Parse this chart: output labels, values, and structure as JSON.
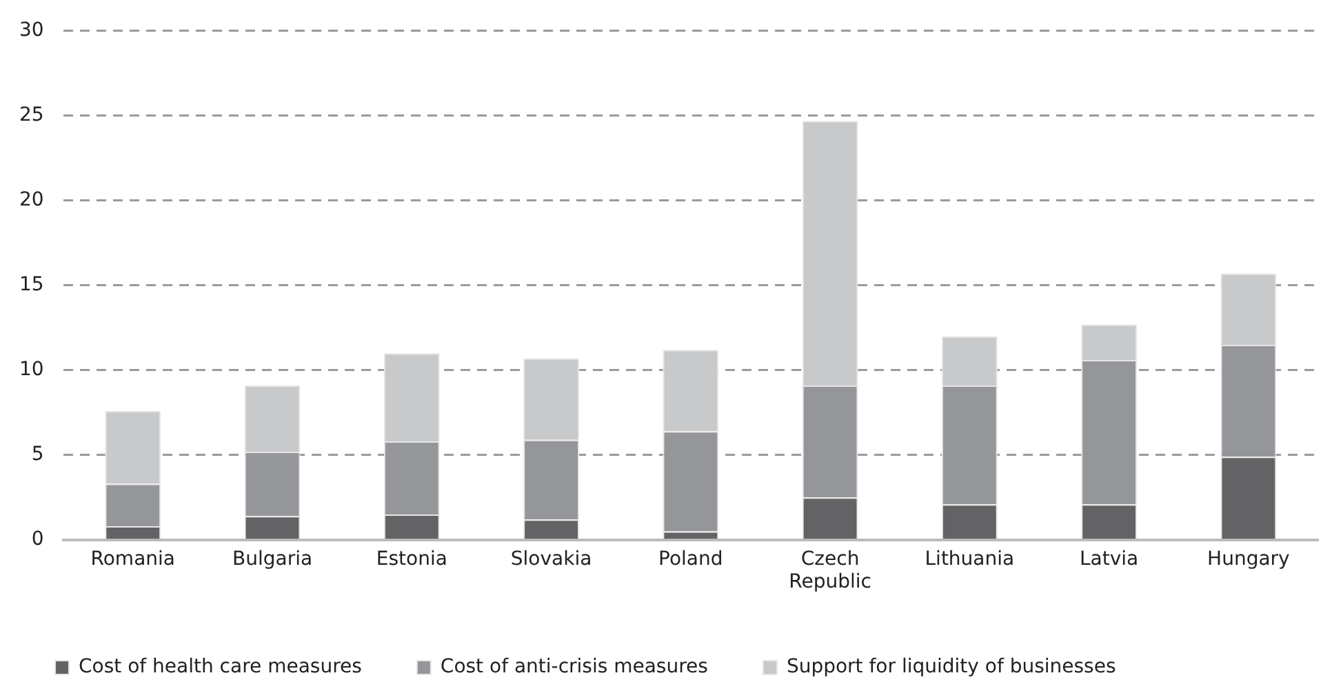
{
  "chart_data": {
    "type": "bar",
    "stacked": true,
    "categories": [
      "Romania",
      "Bulgaria",
      "Estonia",
      "Slovakia",
      "Poland",
      "Czech Republic",
      "Lithuania",
      "Latvia",
      "Hungary"
    ],
    "series": [
      {
        "name": "Cost of health care measures",
        "color": "#636365",
        "values": [
          0.8,
          1.4,
          1.5,
          1.2,
          0.5,
          2.5,
          2.1,
          2.1,
          4.9
        ]
      },
      {
        "name": "Cost of anti-crisis measures",
        "color": "#959699",
        "values": [
          2.5,
          3.8,
          4.3,
          4.7,
          5.9,
          6.6,
          7.0,
          8.5,
          6.6
        ]
      },
      {
        "name": "Support for liquidity of businesses",
        "color": "#c8c9cb",
        "values": [
          4.3,
          3.9,
          5.2,
          4.8,
          4.8,
          15.6,
          2.9,
          2.1,
          4.2
        ]
      }
    ],
    "ylim": [
      0,
      30
    ],
    "yticks": [
      0,
      5,
      10,
      15,
      20,
      25,
      30
    ],
    "grid": "y",
    "legend": "bottom"
  }
}
